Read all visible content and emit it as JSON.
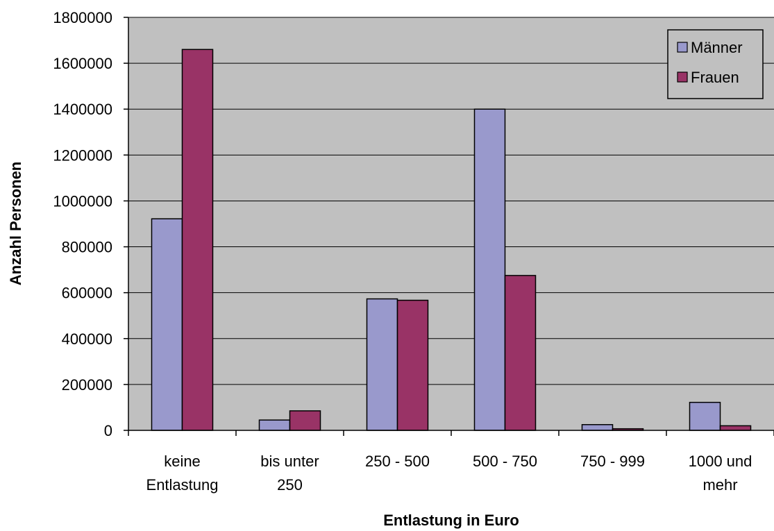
{
  "chart_data": {
    "type": "bar",
    "title": "",
    "xlabel": "Entlastung in Euro",
    "ylabel": "Anzahl Personen",
    "categories": [
      [
        "keine",
        "Entlastung"
      ],
      [
        "bis unter",
        "250"
      ],
      [
        "250 - 500"
      ],
      [
        "500 - 750"
      ],
      [
        "750 - 999"
      ],
      [
        "1000 und",
        "mehr"
      ]
    ],
    "series": [
      {
        "name": "Männer",
        "color": "#9999CC",
        "values": [
          922000,
          45000,
          573000,
          1400000,
          25000,
          122000
        ]
      },
      {
        "name": "Frauen",
        "color": "#993366",
        "values": [
          1660000,
          85000,
          567000,
          675000,
          7000,
          20000
        ]
      }
    ],
    "ylim": [
      0,
      1800000
    ],
    "yticks": [
      0,
      200000,
      400000,
      600000,
      800000,
      1000000,
      1200000,
      1400000,
      1600000,
      1800000
    ],
    "grid": true,
    "legend_position": "top-right",
    "plot_background": "#C0C0C0"
  }
}
